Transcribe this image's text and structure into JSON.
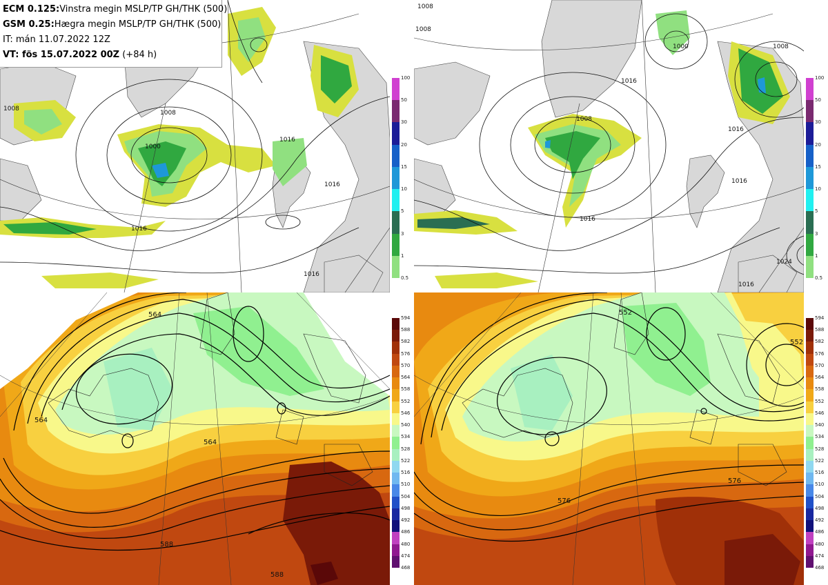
{
  "title": {
    "line1_key": "ECM 0.125:",
    "line1_text": "Vinstra megin MSLP/TP GH/THK (500)",
    "line2_key": "GSM 0.25:",
    "line2_text": "Hægra megin MSLP/TP GH/THK (500)",
    "line3": "IT: mán 11.07.2022 12Z",
    "line4_key": "VT:",
    "line4_text": " fös 15.07.2022 00Z",
    "line4_suffix": " (+84 h)"
  },
  "precip_legend": {
    "levels": [
      "100",
      "50",
      "30",
      "20",
      "15",
      "10",
      "5",
      "3",
      "1",
      "0.5"
    ],
    "colors": [
      "#d040d0",
      "#7a2a70",
      "#1c1c98",
      "#1660c8",
      "#1e98d8",
      "#20f0f0",
      "#2a6e52",
      "#30a840",
      "#90e080",
      "#d8e040"
    ]
  },
  "gh_legend": {
    "levels": [
      "594",
      "588",
      "582",
      "576",
      "570",
      "564",
      "558",
      "552",
      "546",
      "540",
      "534",
      "528",
      "522",
      "516",
      "510",
      "504",
      "498",
      "492",
      "486",
      "480",
      "474",
      "468"
    ],
    "colors": [
      "#5a0808",
      "#7a1a08",
      "#a03008",
      "#c04810",
      "#d86810",
      "#e88a10",
      "#f0a818",
      "#f8d040",
      "#f8f88a",
      "#c8f8c0",
      "#90f090",
      "#a8f0c0",
      "#90d8f0",
      "#70b8f0",
      "#4888e8",
      "#2050c8",
      "#1828a0",
      "#10107a",
      "#c040c0",
      "#901890",
      "#601070",
      "#400848"
    ]
  },
  "maps": {
    "ecm_mslp_labels": [
      "1008",
      "1000",
      "1016",
      "1016",
      "1016",
      "1008",
      "1016"
    ],
    "gsm_mslp_labels": [
      "1008",
      "1008",
      "1000",
      "1008",
      "1016",
      "1008",
      "1016",
      "1016",
      "1016",
      "1024",
      "1016"
    ],
    "ecm_gh_labels": [
      "564",
      "564",
      "564",
      "588",
      "588"
    ],
    "gsm_gh_labels": [
      "552",
      "552",
      "576",
      "576"
    ]
  }
}
